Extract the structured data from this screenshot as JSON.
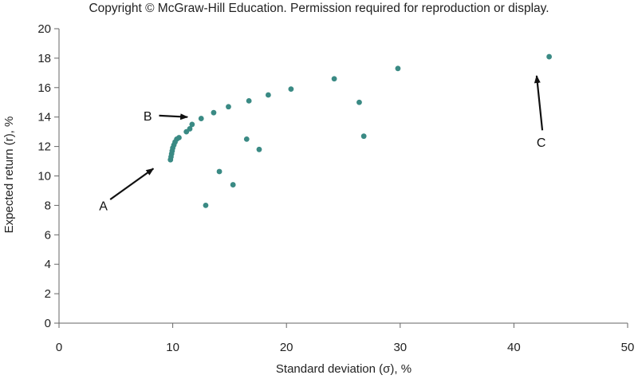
{
  "header": {
    "copyright": "Copyright © McGraw-Hill Education. Permission required for reproduction or display."
  },
  "chart_data": {
    "type": "scatter",
    "title": "",
    "xlabel": "Standard deviation (σ), %",
    "ylabel": "Expected return (r), %",
    "xlim": [
      0,
      50
    ],
    "ylim": [
      0,
      20
    ],
    "xticks": [
      0,
      10,
      20,
      30,
      40,
      50
    ],
    "yticks": [
      0,
      2,
      4,
      6,
      8,
      10,
      12,
      14,
      16,
      18,
      20
    ],
    "grid": false,
    "color": "#3a8a84",
    "series": [
      {
        "points": [
          {
            "x": 9.8,
            "y": 11.1
          },
          {
            "x": 9.85,
            "y": 11.3
          },
          {
            "x": 9.9,
            "y": 11.5
          },
          {
            "x": 9.95,
            "y": 11.7
          },
          {
            "x": 10.0,
            "y": 11.9
          },
          {
            "x": 10.1,
            "y": 12.1
          },
          {
            "x": 10.2,
            "y": 12.3
          },
          {
            "x": 10.35,
            "y": 12.5
          },
          {
            "x": 10.55,
            "y": 12.6
          },
          {
            "x": 11.2,
            "y": 13.0
          },
          {
            "x": 11.5,
            "y": 13.2
          },
          {
            "x": 11.7,
            "y": 13.5
          },
          {
            "x": 12.5,
            "y": 13.9
          },
          {
            "x": 13.6,
            "y": 14.3
          },
          {
            "x": 14.9,
            "y": 14.7
          },
          {
            "x": 16.7,
            "y": 15.1
          },
          {
            "x": 18.4,
            "y": 15.5
          },
          {
            "x": 20.4,
            "y": 15.9
          },
          {
            "x": 24.2,
            "y": 16.6
          },
          {
            "x": 29.8,
            "y": 17.3
          },
          {
            "x": 43.1,
            "y": 18.1
          },
          {
            "x": 26.4,
            "y": 15.0
          },
          {
            "x": 26.8,
            "y": 12.7
          },
          {
            "x": 16.5,
            "y": 12.5
          },
          {
            "x": 17.6,
            "y": 11.8
          },
          {
            "x": 14.1,
            "y": 10.3
          },
          {
            "x": 15.3,
            "y": 9.4
          },
          {
            "x": 12.9,
            "y": 8.0
          }
        ]
      }
    ],
    "annotations": [
      {
        "label": "A",
        "text_x": 3.9,
        "text_y": 8.0,
        "arrow_from": [
          4.5,
          8.4
        ],
        "arrow_to": [
          8.3,
          10.5
        ]
      },
      {
        "label": "B",
        "text_x": 7.8,
        "text_y": 14.1,
        "arrow_from": [
          8.8,
          14.1
        ],
        "arrow_to": [
          11.3,
          14.0
        ]
      },
      {
        "label": "C",
        "text_x": 42.4,
        "text_y": 12.3,
        "arrow_from": [
          42.5,
          13.1
        ],
        "arrow_to": [
          42.0,
          16.8
        ]
      }
    ]
  }
}
